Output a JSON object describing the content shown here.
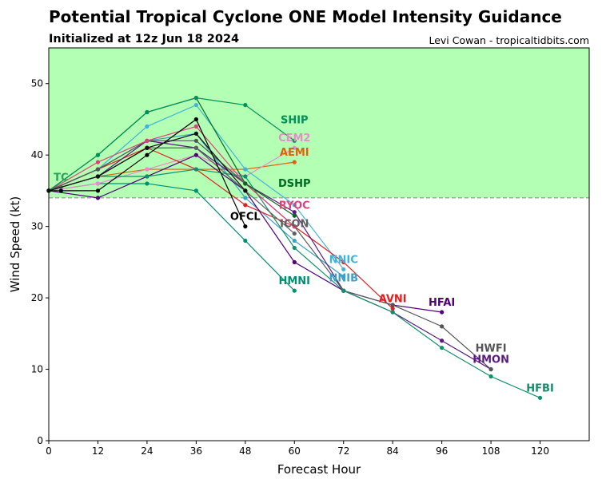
{
  "chart_data": {
    "type": "line",
    "title": "Potential Tropical Cyclone ONE Model Intensity Guidance",
    "subtitle": "Initialized at 12z Jun 18 2024",
    "credit": "Levi Cowan - tropicaltidbits.com",
    "xlabel": "Forecast Hour",
    "ylabel": "Wind Speed (kt)",
    "xlim": [
      0,
      132
    ],
    "ylim": [
      0,
      55
    ],
    "xticks": [
      0,
      12,
      24,
      36,
      48,
      60,
      72,
      84,
      96,
      108,
      120
    ],
    "yticks": [
      0,
      10,
      20,
      30,
      40,
      50
    ],
    "tropical_storm_threshold_kt": 34,
    "shade_color": "#b3ffb3",
    "grid": false,
    "series": [
      {
        "name": "TC",
        "color": "#2ca05a",
        "x": [
          0,
          3
        ],
        "y": [
          35,
          35.5
        ]
      },
      {
        "name": "HMNI",
        "color": "#009070",
        "x": [
          0,
          12,
          24,
          36,
          48,
          60
        ],
        "y": [
          35,
          36,
          36,
          35,
          28,
          21
        ]
      },
      {
        "name": "AEMI",
        "color": "#e06010",
        "x": [
          0,
          12,
          24,
          36,
          48,
          60
        ],
        "y": [
          35,
          37,
          38,
          38,
          38,
          39
        ]
      },
      {
        "name": "CEM2",
        "color": "#e88ccc",
        "x": [
          0,
          12,
          24,
          36,
          48,
          60
        ],
        "y": [
          35,
          36,
          38,
          40,
          37,
          41
        ]
      },
      {
        "name": "NNIC",
        "color": "#40b4d8",
        "x": [
          0,
          12,
          24,
          36,
          48,
          60,
          72
        ],
        "y": [
          35,
          38,
          44,
          47,
          38,
          33,
          24
        ]
      },
      {
        "name": "NNIB",
        "color": "#3aa0c8",
        "x": [
          0,
          12,
          24,
          36,
          48,
          60,
          72
        ],
        "y": [
          35,
          38,
          42,
          43,
          34,
          28,
          23
        ]
      },
      {
        "name": "AVNI",
        "color": "#e02020",
        "x": [
          0,
          12,
          24,
          36,
          48,
          60,
          72,
          84
        ],
        "y": [
          35,
          38,
          41,
          38,
          33,
          30,
          25,
          18.5
        ]
      },
      {
        "name": "HFAI",
        "color": "#500078",
        "x": [
          0,
          12,
          24,
          36,
          48,
          60,
          72,
          84,
          96
        ],
        "y": [
          35,
          34,
          37,
          40,
          35,
          25,
          21,
          19,
          18
        ]
      },
      {
        "name": "HMON",
        "color": "#5a1a80",
        "x": [
          0,
          12,
          24,
          36,
          48,
          60,
          72,
          84,
          96,
          108
        ],
        "y": [
          35,
          37,
          42,
          41,
          36,
          32,
          21,
          18,
          14,
          10
        ]
      },
      {
        "name": "HWFI",
        "color": "#555555",
        "x": [
          0,
          12,
          24,
          36,
          48,
          60,
          72,
          84,
          96,
          108
        ],
        "y": [
          35,
          38,
          42,
          42,
          36,
          30,
          21,
          19,
          16,
          10
        ]
      },
      {
        "name": "HFBI",
        "color": "#10906a",
        "x": [
          0,
          12,
          24,
          36,
          48,
          60,
          72,
          84,
          96,
          108,
          120
        ],
        "y": [
          35,
          37,
          37,
          38,
          37,
          27,
          21,
          18,
          13,
          9,
          6
        ]
      },
      {
        "name": "ICON",
        "color": "#606060",
        "x": [
          0,
          12,
          24,
          36,
          48,
          60
        ],
        "y": [
          35,
          37,
          41,
          41,
          35,
          29
        ]
      },
      {
        "name": "RYOC",
        "color": "#e0407a",
        "x": [
          0,
          12,
          24,
          36,
          48,
          60
        ],
        "y": [
          35,
          39,
          42,
          44,
          36,
          30
        ]
      },
      {
        "name": "DSHP",
        "color": "#006a20",
        "x": [
          0,
          12,
          24,
          36,
          48,
          60
        ],
        "y": [
          35,
          40,
          46,
          48,
          36,
          31.5
        ]
      },
      {
        "name": "SHIP",
        "color": "#00905a",
        "x": [
          0,
          12,
          24,
          36,
          48,
          60
        ],
        "y": [
          35,
          40,
          46,
          48,
          47,
          42
        ]
      },
      {
        "name": "OFCL",
        "color": "#000000",
        "x": [
          0,
          3,
          12,
          24,
          36,
          48
        ],
        "y": [
          35,
          35,
          35,
          40,
          45,
          30
        ]
      },
      {
        "name": "",
        "color": "#111111",
        "x": [
          0,
          12,
          24,
          36,
          48
        ],
        "y": [
          35,
          37,
          41,
          43,
          35
        ]
      }
    ]
  }
}
